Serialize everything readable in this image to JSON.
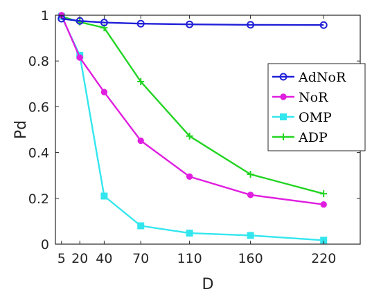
{
  "chart_data": {
    "type": "line",
    "xlabel": "D",
    "ylabel": "Pd",
    "xlim": [
      0,
      250
    ],
    "ylim": [
      0,
      1
    ],
    "x_ticks": [
      5,
      20,
      40,
      70,
      110,
      160,
      220
    ],
    "y_ticks": [
      0,
      0.2,
      0.4,
      0.6,
      0.8,
      1
    ],
    "y_tick_labels": [
      "0",
      "0.2",
      "0.4",
      "0.6",
      "0.8",
      "1"
    ],
    "grid": false,
    "legend_position": "right",
    "series": [
      {
        "name": "AdNoR",
        "color": "#1f1fd8",
        "marker": "circle",
        "x": [
          5,
          20,
          40,
          70,
          110,
          160,
          220
        ],
        "y": [
          0.985,
          0.975,
          0.968,
          0.963,
          0.96,
          0.958,
          0.957
        ]
      },
      {
        "name": "NoR",
        "color": "#e01ee0",
        "marker": "dot",
        "x": [
          5,
          20,
          40,
          70,
          110,
          160,
          220
        ],
        "y": [
          1.0,
          0.815,
          0.664,
          0.452,
          0.295,
          0.215,
          0.173
        ]
      },
      {
        "name": "OMP",
        "color": "#33e6ee",
        "marker": "square",
        "x": [
          5,
          20,
          40,
          70,
          110,
          160,
          220
        ],
        "y": [
          0.995,
          0.825,
          0.21,
          0.08,
          0.048,
          0.038,
          0.017
        ]
      },
      {
        "name": "ADP",
        "color": "#22d422",
        "marker": "plus",
        "x": [
          5,
          20,
          40,
          70,
          110,
          160,
          220
        ],
        "y": [
          0.995,
          0.97,
          0.945,
          0.71,
          0.472,
          0.305,
          0.22
        ]
      }
    ]
  }
}
